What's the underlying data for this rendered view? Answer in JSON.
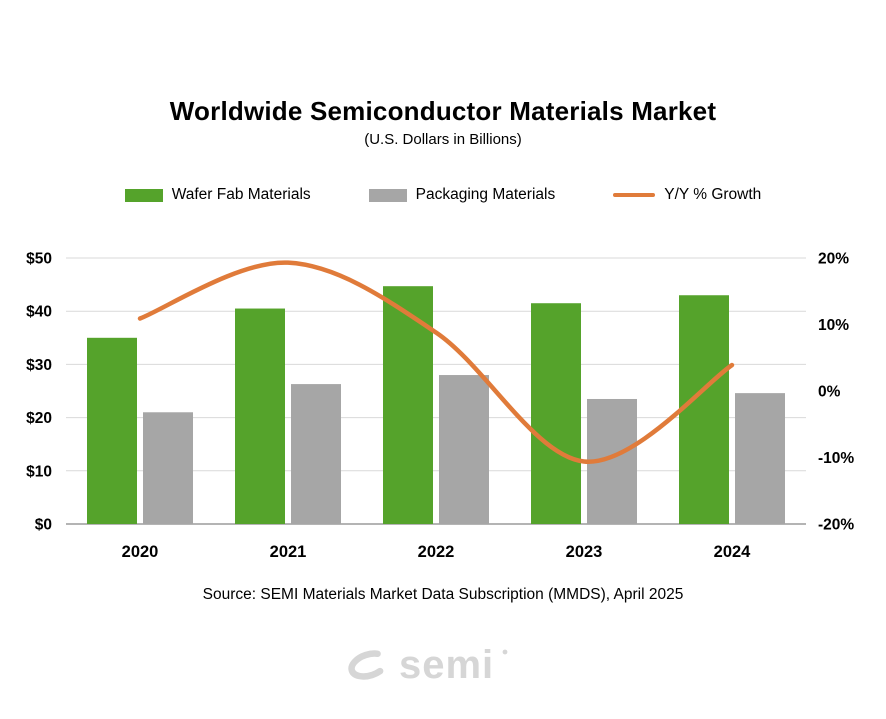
{
  "title": "Worldwide Semiconductor Materials Market",
  "subtitle": "(U.S. Dollars in Billions)",
  "legend": [
    {
      "label": "Wafer Fab Materials",
      "color": "#55A32B",
      "type": "bar"
    },
    {
      "label": "Packaging  Materials",
      "color": "#A6A6A6",
      "type": "bar"
    },
    {
      "label": "Y/Y % Growth",
      "color": "#E07B3A",
      "type": "line"
    }
  ],
  "source": "Source:  SEMI Materials Market Data Subscription (MMDS), April 2025",
  "logo": {
    "text": "semi",
    "color": "#D6D6D6"
  },
  "colors": {
    "gridline": "#D9D9D9",
    "axis_line": "#9B9B9B",
    "text": "#000000"
  },
  "chart_data": {
    "type": "bar",
    "subtype": "combo-bar-line",
    "categories": [
      "2020",
      "2021",
      "2022",
      "2023",
      "2024"
    ],
    "series": [
      {
        "name": "Wafer Fab Materials",
        "type": "bar",
        "axis": "left",
        "color": "#55A32B",
        "values": [
          35.0,
          40.5,
          44.7,
          41.5,
          43.0
        ]
      },
      {
        "name": "Packaging Materials",
        "type": "bar",
        "axis": "left",
        "color": "#A6A6A6",
        "values": [
          21.0,
          26.3,
          28.0,
          23.5,
          24.6
        ]
      },
      {
        "name": "Y/Y % Growth",
        "type": "line",
        "axis": "right",
        "color": "#E07B3A",
        "values": [
          10.9,
          19.3,
          8.8,
          -10.6,
          3.9
        ]
      }
    ],
    "left_axis": {
      "label": "U.S. Dollars in Billions",
      "min": 0,
      "max": 50,
      "tick_step": 10,
      "ticks": [
        "$0",
        "$10",
        "$20",
        "$30",
        "$40",
        "$50"
      ]
    },
    "right_axis": {
      "label": "Y/Y % Growth",
      "min": -20,
      "max": 20,
      "tick_step": 10,
      "ticks": [
        "-20%",
        "-10%",
        "0%",
        "10%",
        "20%"
      ]
    },
    "grid": true,
    "legend_position": "top",
    "title": "Worldwide Semiconductor Materials Market",
    "xlabel": "",
    "ylabel": "U.S. Dollars in Billions"
  }
}
